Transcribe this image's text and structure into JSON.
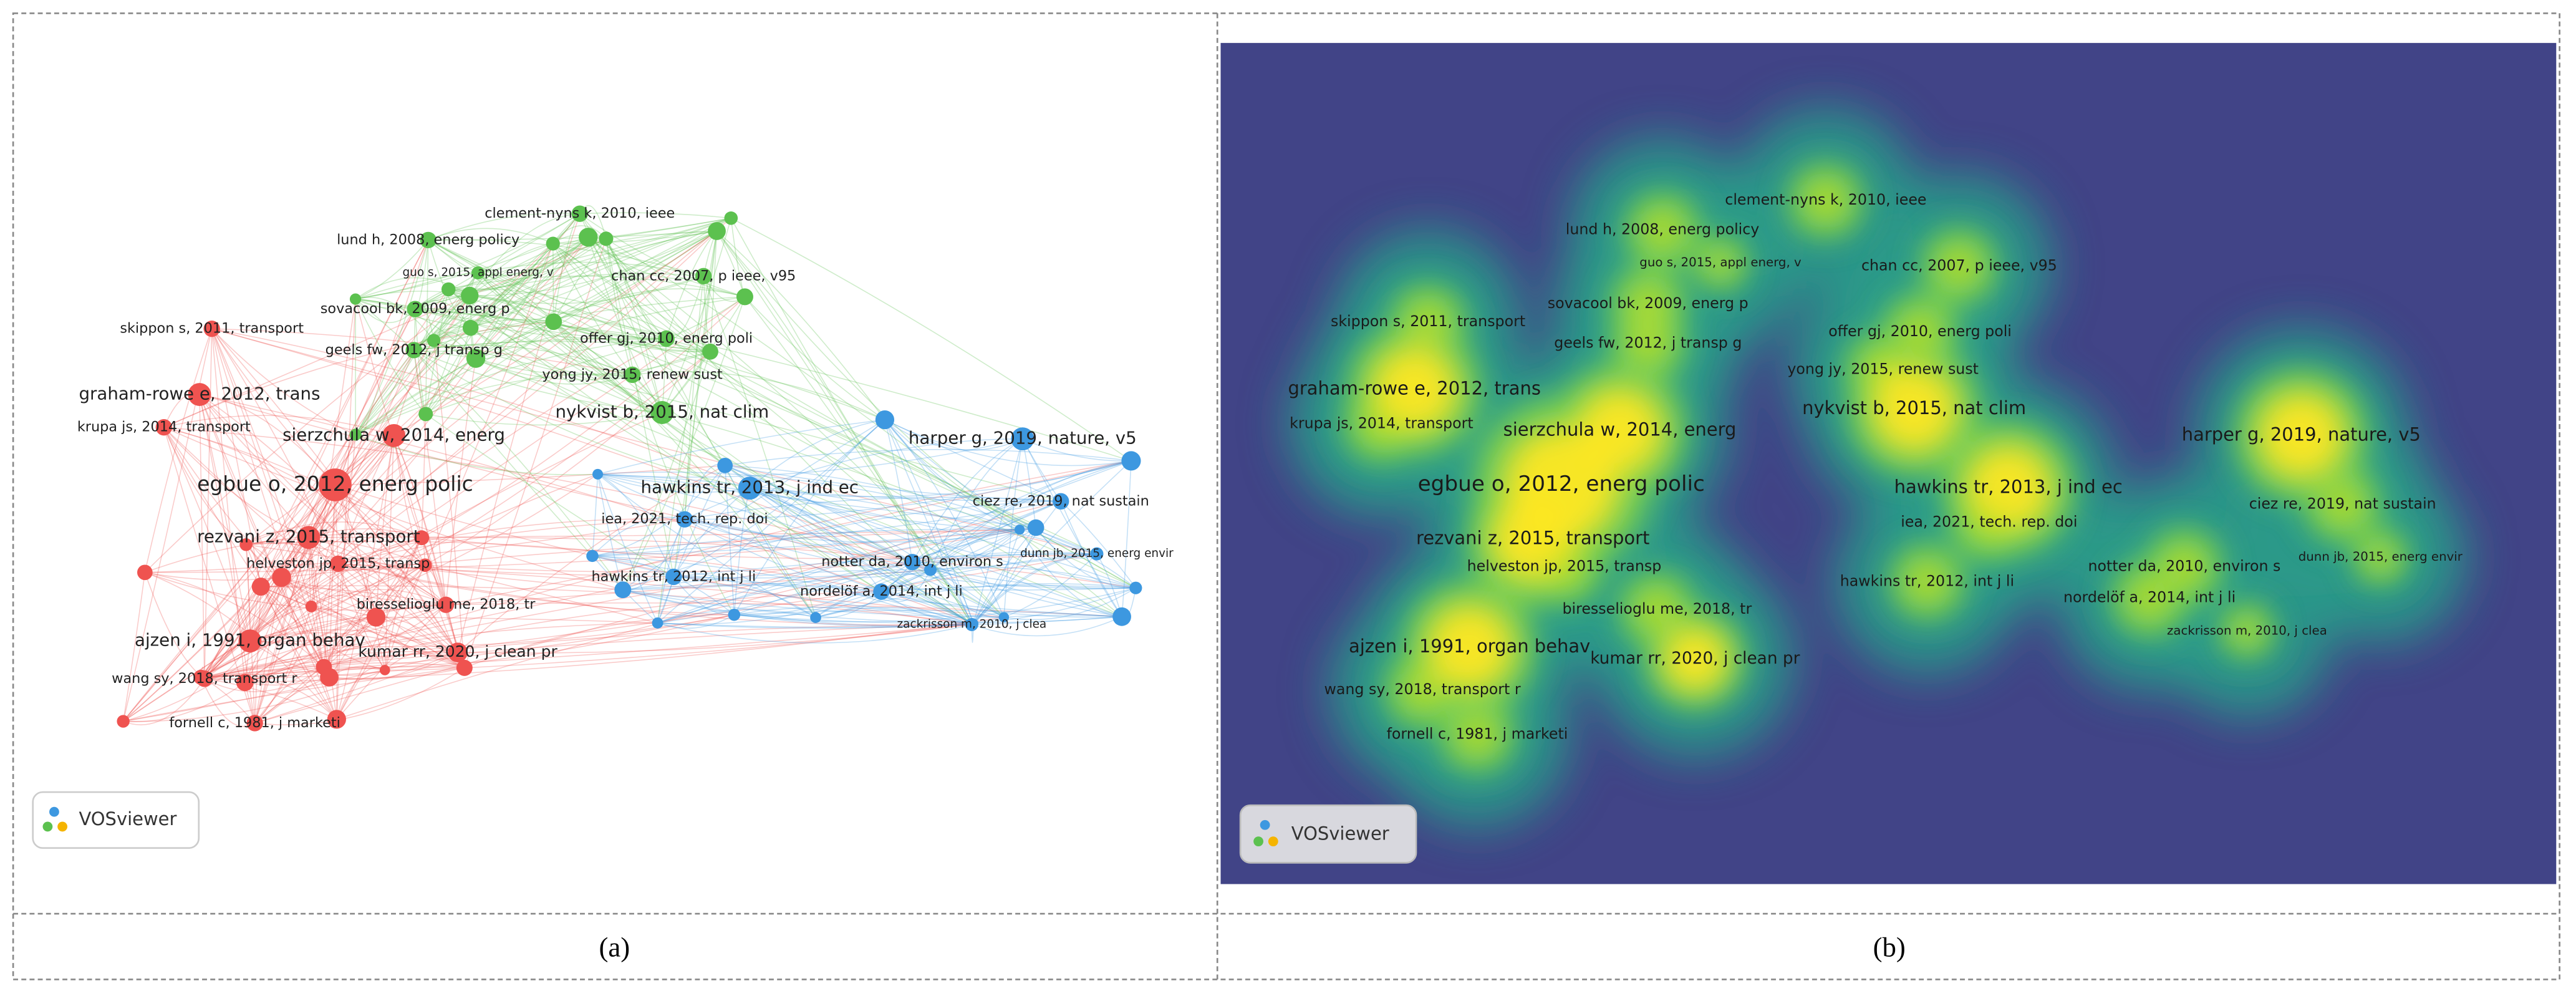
{
  "panels": [
    {
      "caption": "(a)",
      "logo": "VOSviewer"
    },
    {
      "caption": "(b)",
      "logo": "VOSviewer"
    }
  ],
  "clusters": [
    {
      "color": "#ef5350",
      "nodes": [
        "skippon s, 2011, transport",
        "graham-rowe e, 2012, trans",
        "krupa js, 2014, transport",
        "sierzchula w, 2014, energ",
        "egbue o, 2012, energ polic",
        "rezvani z, 2015, transport",
        "helveston jp, 2015, transp",
        "biresselioglu me, 2018, tr",
        "ajzen i, 1991, organ behav",
        "kumar rr, 2020, j clean pr",
        "wang sy, 2018, transport r",
        "fornell c, 1981, j marketi"
      ]
    },
    {
      "color": "#5cc14f",
      "nodes": [
        "clement-nyns k, 2010, ieee",
        "lund h, 2008, energ policy",
        "guo s, 2015, appl energ, v",
        "chan cc, 2007, p ieee, v95",
        "sovacool bk, 2009, energ p",
        "geels fw, 2012, j transp g",
        "offer gj, 2010, energ poli",
        "yong jy, 2015, renew sust",
        "nykvist b, 2015, nat clim"
      ]
    },
    {
      "color": "#3d98e0",
      "nodes": [
        "harper g, 2019, nature, v5",
        "hawkins tr, 2013, j ind ec",
        "ciez re, 2019, nat sustain",
        "iea, 2021, tech. rep. doi",
        "notter da, 2010, environ s",
        "dunn jb, 2015, energ envir",
        "hawkins tr, 2012, int j li",
        "nordelöf a, 2014, int j li",
        "zackrisson m, 2010, j clea"
      ]
    }
  ]
}
